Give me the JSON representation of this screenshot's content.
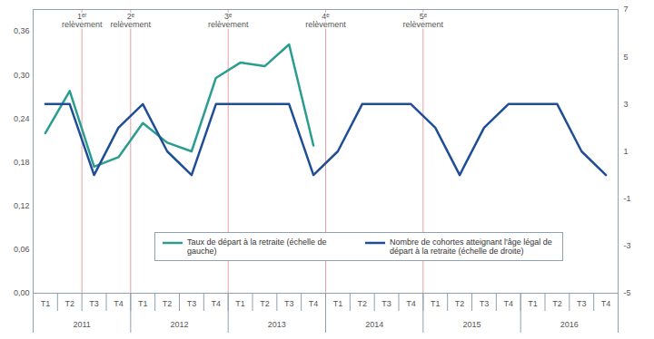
{
  "chart_data": {
    "type": "line",
    "categories": [
      "T1",
      "T2",
      "T3",
      "T4",
      "T1",
      "T2",
      "T3",
      "T4",
      "T1",
      "T2",
      "T3",
      "T4",
      "T1",
      "T2",
      "T3",
      "T4",
      "T1",
      "T2",
      "T3",
      "T4",
      "T1",
      "T2",
      "T3",
      "T4"
    ],
    "years": [
      "2011",
      "2012",
      "2013",
      "2014",
      "2015",
      "2016"
    ],
    "ylim": [
      0,
      0.39
    ],
    "yticks": [
      {
        "value": 0,
        "label": "0,00"
      },
      {
        "value": 0.06,
        "label": "0,06"
      },
      {
        "value": 0.12,
        "label": "0,12"
      },
      {
        "value": 0.18,
        "label": "0,18"
      },
      {
        "value": 0.24,
        "label": "0,24"
      },
      {
        "value": 0.3,
        "label": "0,30"
      },
      {
        "value": 0.36,
        "label": "0,36"
      }
    ],
    "y2lim": [
      -5,
      7
    ],
    "y2ticks": [
      -5,
      -3,
      -1,
      1,
      3,
      5,
      7
    ],
    "grid": false,
    "legend": "bottom",
    "series": [
      {
        "name": "Taux de départ à la retraite (échelle de gauche)",
        "color": "#2a9d8f",
        "values": [
          0.22,
          0.278,
          0.174,
          0.187,
          0.234,
          0.207,
          0.195,
          0.296,
          0.317,
          0.312,
          0.342,
          0.203,
          null,
          null,
          null,
          null,
          null,
          null,
          null,
          null,
          null,
          null,
          null,
          null
        ]
      },
      {
        "name": "Nombre de cohortes atteignant l'âge légal de départ à la retraite (échelle de droite)",
        "color": "#1f4e96",
        "axis": "y2",
        "values": [
          3,
          3,
          0,
          2,
          3,
          1,
          0,
          3,
          3,
          3,
          3,
          0,
          1,
          3,
          3,
          3,
          2,
          0,
          2,
          3,
          3,
          3,
          1,
          0
        ]
      }
    ],
    "annotations": [
      {
        "text": "1ᵉʳ relèvement",
        "x": 1.5,
        "color": "#e8a0a0"
      },
      {
        "text": "2ᵉ relèvement",
        "x": 3.5,
        "color": "#e8a0a0"
      },
      {
        "text": "3ᵉ relèvement",
        "x": 7.5,
        "color": "#e8a0a0"
      },
      {
        "text": "4ᵉ relèvement",
        "x": 11.5,
        "color": "#e8a0a0"
      },
      {
        "text": "5ᵉ relèvement",
        "x": 15.5,
        "color": "#e8a0a0"
      }
    ]
  }
}
